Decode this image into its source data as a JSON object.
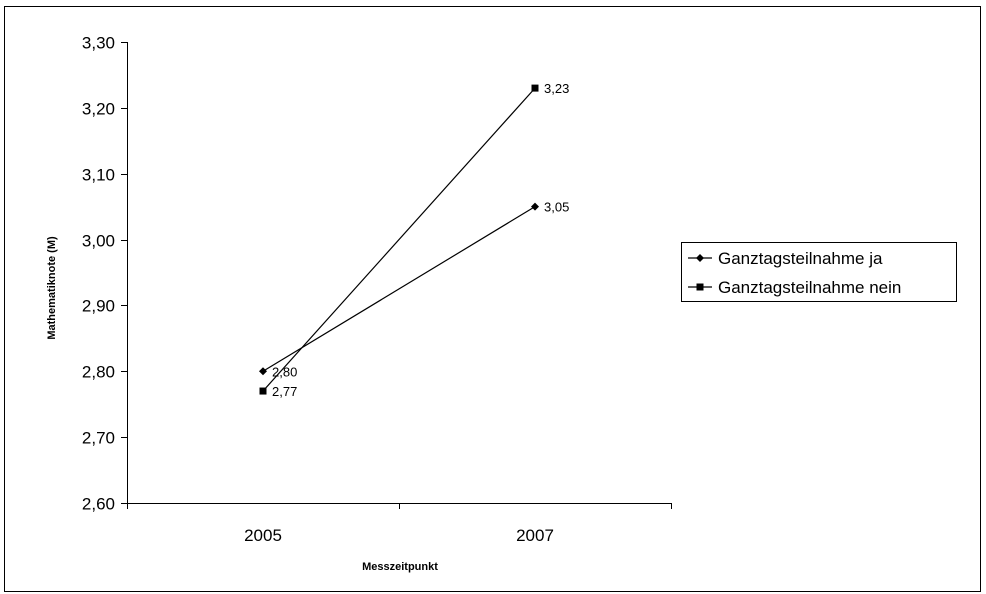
{
  "chart_data": {
    "type": "line",
    "title": "",
    "xlabel": "Messzeitpunkt",
    "ylabel": "Mathematiknote (M)",
    "categories": [
      "2005",
      "2007"
    ],
    "ylim": [
      2.6,
      3.3
    ],
    "yticks": [
      "2,60",
      "2,70",
      "2,80",
      "2,90",
      "3,00",
      "3,10",
      "3,20",
      "3,30"
    ],
    "ytick_values": [
      2.6,
      2.7,
      2.8,
      2.9,
      3.0,
      3.1,
      3.2,
      3.3
    ],
    "grid": false,
    "legend_position": "right",
    "series": [
      {
        "name": "Ganztagsteilnahme ja",
        "marker": "diamond",
        "color": "#000000",
        "values": [
          2.8,
          3.05
        ],
        "labels": [
          "2,80",
          "3,05"
        ]
      },
      {
        "name": "Ganztagsteilnahme nein",
        "marker": "square",
        "color": "#000000",
        "values": [
          2.77,
          3.23
        ],
        "labels": [
          "2,77",
          "3,23"
        ]
      }
    ]
  }
}
